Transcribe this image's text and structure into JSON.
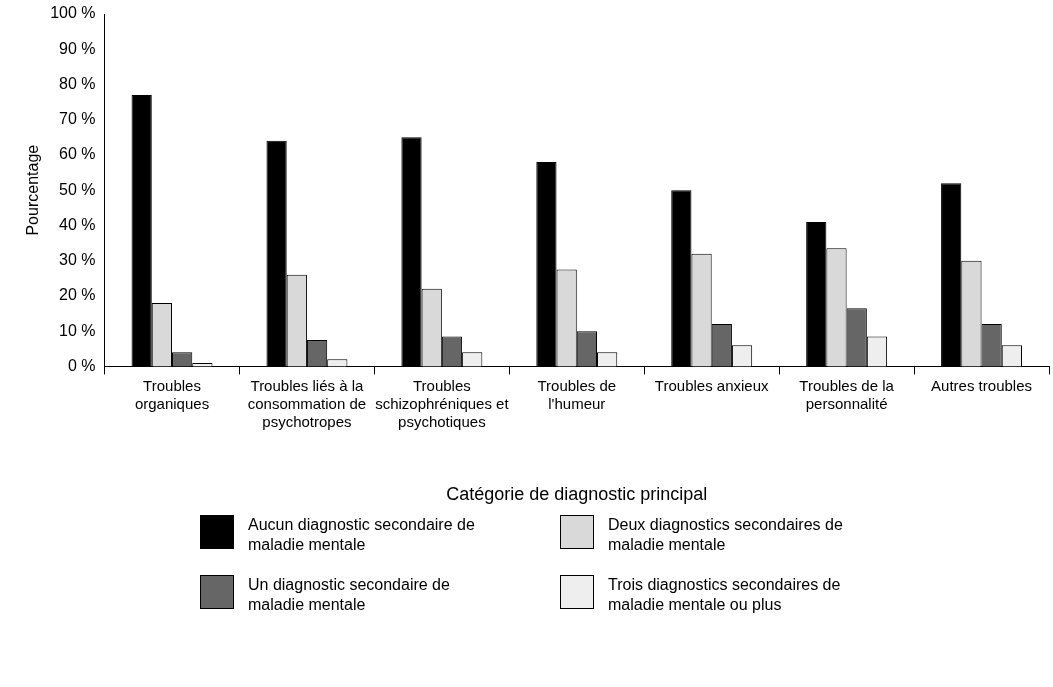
{
  "chart_data": {
    "type": "bar",
    "xlabel": "Catégorie de diagnostic principal",
    "ylabel": "Pourcentage",
    "categories": [
      "Troubles organiques",
      "Troubles liés à la consommation de psychotropes",
      "Troubles schizophréniques et psychotiques",
      "Troubles de l'humeur",
      "Troubles anxieux",
      "Troubles de la personnalité",
      "Autres troubles"
    ],
    "series": [
      {
        "name": "Aucun diagnostic secondaire de maladie mentale",
        "color": "#000000",
        "values": [
          77,
          64,
          65,
          58,
          50,
          41,
          52
        ]
      },
      {
        "name": "Deux diagnostics secondaires de maladie mentale",
        "color": "#d9d9d9",
        "values": [
          18,
          26,
          22,
          27.5,
          32,
          33.5,
          30
        ]
      },
      {
        "name": "Un diagnostic secondaire de maladie mentale",
        "color": "#666666",
        "values": [
          4,
          7.5,
          8.5,
          10,
          12,
          16.5,
          12
        ]
      },
      {
        "name": "Trois diagnostics secondaires de maladie mentale ou plus",
        "color": "#eeeeee",
        "values": [
          1,
          2,
          4,
          4,
          6,
          8.5,
          6
        ]
      }
    ],
    "ylim": [
      0,
      100
    ],
    "yticks": [
      {
        "value": 0,
        "label": "0 %"
      },
      {
        "value": 10,
        "label": "10 %"
      },
      {
        "value": 20,
        "label": "20 %"
      },
      {
        "value": 30,
        "label": "30 %"
      },
      {
        "value": 40,
        "label": "40 %"
      },
      {
        "value": 50,
        "label": "50 %"
      },
      {
        "value": 60,
        "label": "60 %"
      },
      {
        "value": 70,
        "label": "70 %"
      },
      {
        "value": 80,
        "label": "80 %"
      },
      {
        "value": 90,
        "label": "90 %"
      },
      {
        "value": 100,
        "label": "100 %"
      }
    ],
    "grid": false,
    "legend": "bottom"
  }
}
